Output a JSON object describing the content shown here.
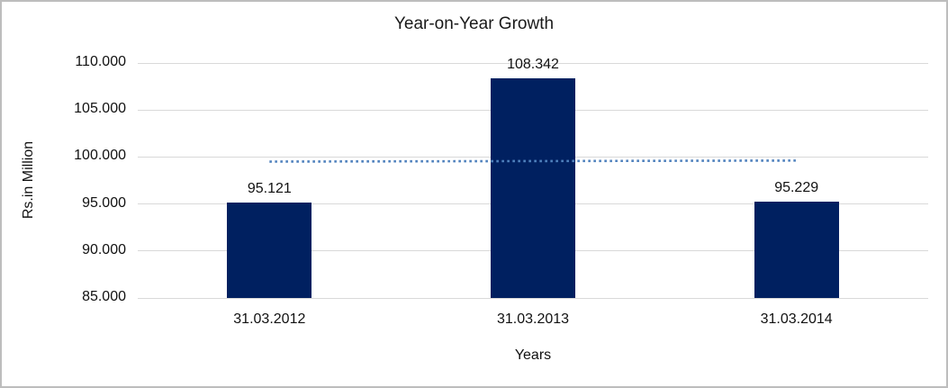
{
  "chart_data": {
    "type": "bar",
    "title": "Year-on-Year Growth",
    "xlabel": "Years",
    "ylabel": "Rs.in Million",
    "categories": [
      "31.03.2012",
      "31.03.2013",
      "31.03.2014"
    ],
    "series": [
      {
        "name": "Rs.in Million",
        "values": [
          95.121,
          108.342,
          95.229
        ]
      }
    ],
    "data_labels": [
      "95.121",
      "108.342",
      "95.229"
    ],
    "yticks": [
      "85.000",
      "90.000",
      "95.000",
      "100.000",
      "105.000",
      "110.000"
    ],
    "ylim": [
      85,
      110
    ],
    "grid": true,
    "legend": "none",
    "bar_color": "#002060",
    "gridline_color": "#d9d9d9",
    "trendline": {
      "type": "linear",
      "style": "dotted",
      "color": "#4f81bd",
      "endpoint_values": [
        99.51,
        99.62
      ]
    }
  }
}
